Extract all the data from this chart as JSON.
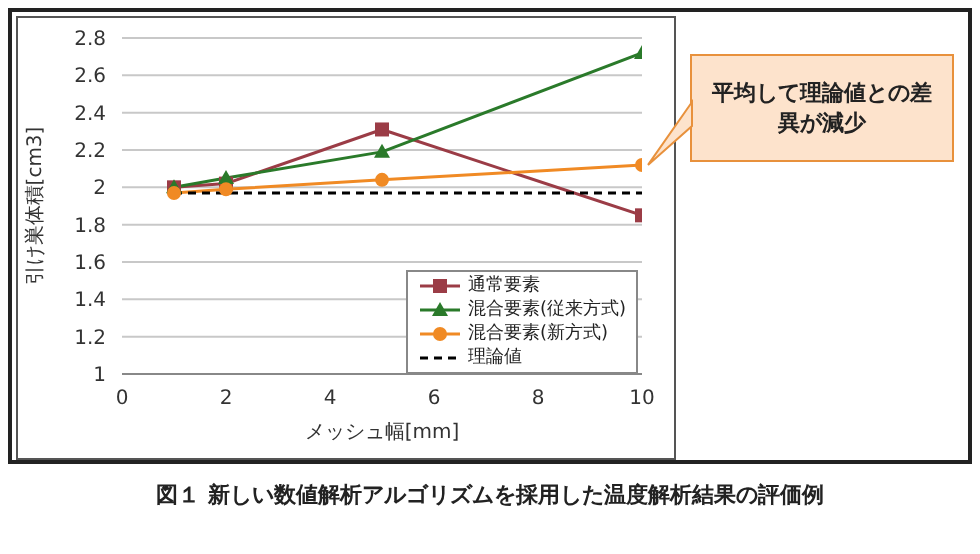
{
  "chart_data": {
    "type": "line",
    "xlabel": "メッシュ幅[mm]",
    "ylabel": "引け巣体積[cm3]",
    "xlim": [
      0,
      10
    ],
    "xticks": [
      0,
      2,
      4,
      6,
      8,
      10
    ],
    "ylim": [
      1,
      2.8
    ],
    "yticks": [
      1,
      1.2,
      1.4,
      1.6,
      1.8,
      2,
      2.2,
      2.4,
      2.6,
      2.8
    ],
    "grid": "y",
    "legend": "bottom right",
    "series": [
      {
        "name": "通常要素",
        "color": "#9b3c46",
        "marker": "square",
        "x": [
          1,
          2,
          5,
          10
        ],
        "values": [
          2.0,
          2.02,
          2.31,
          1.85
        ]
      },
      {
        "name": "混合要素(従来方式)",
        "color": "#2a7a2a",
        "marker": "triangle",
        "x": [
          1,
          2,
          5,
          10
        ],
        "values": [
          2.0,
          2.05,
          2.19,
          2.72
        ]
      },
      {
        "name": "混合要素(新方式)",
        "color": "#f08a24",
        "marker": "circle",
        "x": [
          1,
          2,
          5,
          10
        ],
        "values": [
          1.97,
          1.99,
          2.04,
          2.12
        ]
      },
      {
        "name": "理論値",
        "color": "#000000",
        "marker": "none",
        "line_style": "dashed",
        "x": [
          1,
          10
        ],
        "values": [
          1.97,
          1.97
        ]
      }
    ],
    "annotations": [
      "平均して理論値との差異が減少",
      "図１ 新しい数値解析アルゴリズムを採用した温度解析結果の評価例"
    ]
  }
}
